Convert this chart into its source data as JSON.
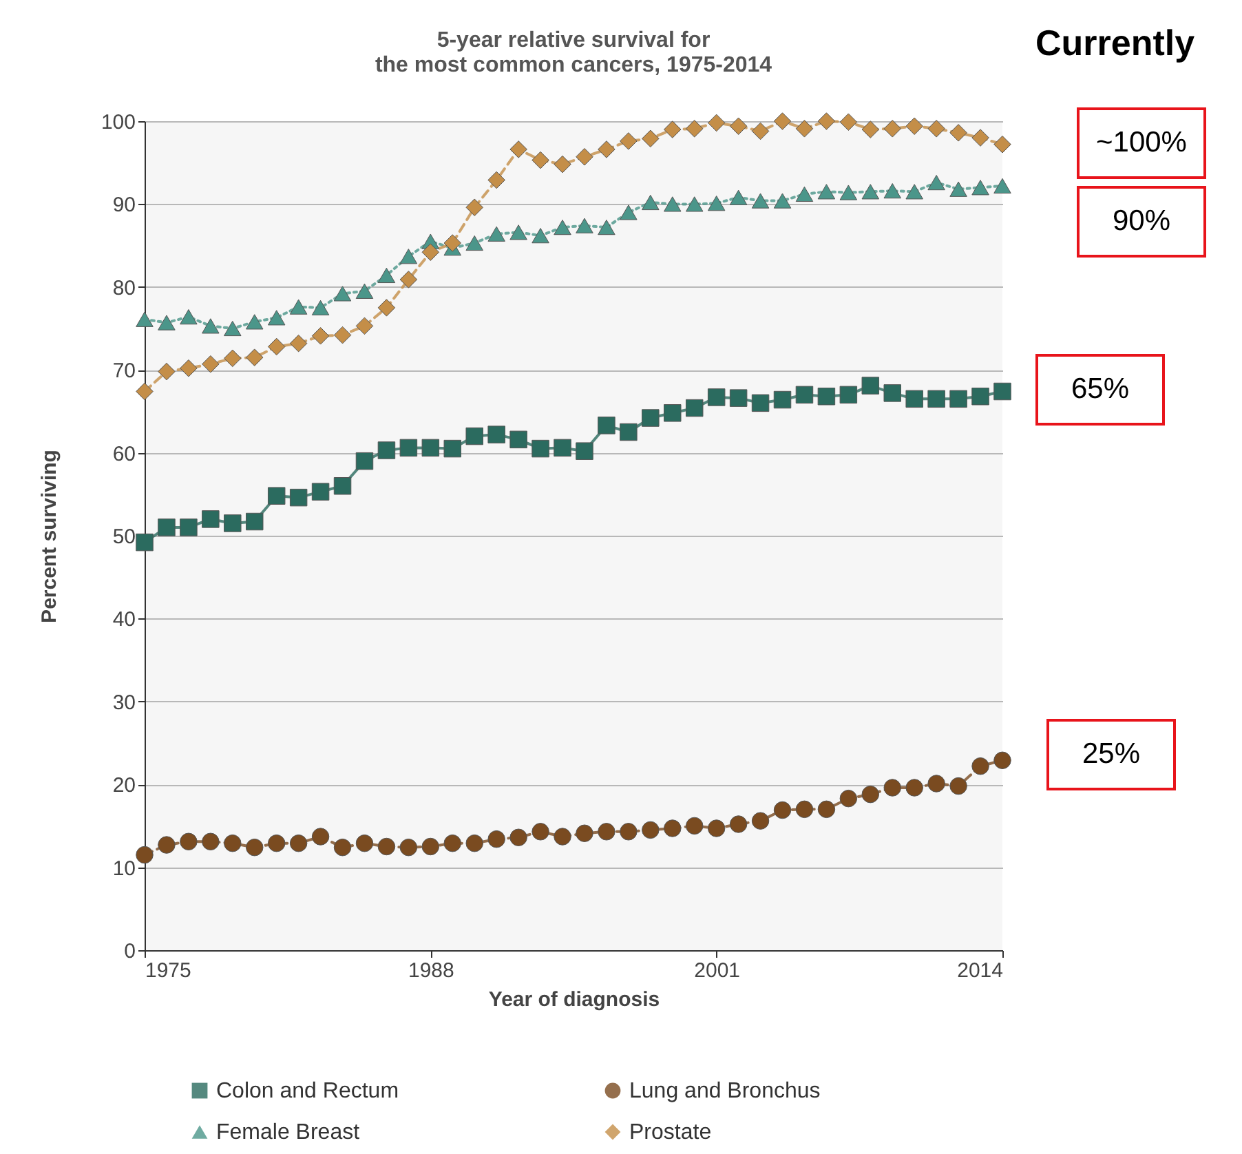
{
  "chart_data": {
    "type": "line",
    "title": "5-year relative survival for the most common cancers, 1975-2014",
    "xlabel": "Year of diagnosis",
    "ylabel": "Percent surviving",
    "x": [
      1975,
      1976,
      1977,
      1978,
      1979,
      1980,
      1981,
      1982,
      1983,
      1984,
      1985,
      1986,
      1987,
      1988,
      1989,
      1990,
      1991,
      1992,
      1993,
      1994,
      1995,
      1996,
      1997,
      1998,
      1999,
      2000,
      2001,
      2002,
      2003,
      2004,
      2005,
      2006,
      2007,
      2008,
      2009,
      2010,
      2011,
      2012,
      2013,
      2014
    ],
    "xlim": [
      1975,
      2014
    ],
    "xticks": [
      1975,
      1988,
      2001,
      2014
    ],
    "ylim": [
      0,
      100
    ],
    "yticks": [
      0,
      10,
      20,
      30,
      40,
      50,
      60,
      70,
      80,
      90,
      100
    ],
    "grid": "y",
    "legend": "bottom",
    "series": [
      {
        "name": "Colon and Rectum",
        "color": "#2b6b5f",
        "marker": "square",
        "line_style": "solid",
        "values": [
          49.2,
          51,
          51,
          52,
          51.5,
          51.7,
          54.8,
          54.6,
          55.3,
          56,
          59,
          60.3,
          60.6,
          60.6,
          60.5,
          62,
          62.2,
          61.6,
          60.5,
          60.6,
          60.2,
          63.3,
          62.5,
          64.2,
          64.8,
          65.4,
          66.7,
          66.6,
          66,
          66.4,
          67,
          66.8,
          67,
          68.1,
          67.2,
          66.5,
          66.5,
          66.5,
          66.8,
          67.4
        ]
      },
      {
        "name": "Lung and Bronchus",
        "color": "#7a4b20",
        "marker": "circle",
        "line_style": "dashed",
        "values": [
          11.5,
          12.7,
          13.1,
          13.1,
          12.9,
          12.4,
          12.9,
          12.9,
          13.7,
          12.4,
          12.9,
          12.5,
          12.4,
          12.5,
          12.9,
          12.9,
          13.4,
          13.6,
          14.3,
          13.7,
          14.1,
          14.3,
          14.3,
          14.5,
          14.7,
          15,
          14.7,
          15.2,
          15.6,
          16.9,
          17,
          17,
          18.3,
          18.8,
          19.6,
          19.6,
          20.1,
          19.8,
          22.2,
          22.9
        ]
      },
      {
        "name": "Female Breast",
        "color": "#4b968a",
        "marker": "triangle",
        "line_style": "dotted",
        "values": [
          76.1,
          75.7,
          76.4,
          75.3,
          75,
          75.8,
          76.3,
          77.6,
          77.5,
          79.2,
          79.5,
          81.4,
          83.7,
          85.5,
          84.7,
          85.3,
          86.4,
          86.6,
          86.2,
          87.2,
          87.4,
          87.2,
          89,
          90.2,
          90,
          90,
          90.1,
          90.8,
          90.4,
          90.4,
          91.2,
          91.5,
          91.4,
          91.5,
          91.6,
          91.5,
          92.6,
          91.8,
          92,
          92.2
        ]
      },
      {
        "name": "Prostate",
        "color": "#c48e48",
        "marker": "diamond",
        "line_style": "dashed",
        "values": [
          67.4,
          69.8,
          70.2,
          70.7,
          71.4,
          71.5,
          72.8,
          73.2,
          74.1,
          74.2,
          75.3,
          77.5,
          80.9,
          84.2,
          85.3,
          89.6,
          92.9,
          96.6,
          95.3,
          94.8,
          95.7,
          96.6,
          97.6,
          97.9,
          99,
          99.1,
          99.8,
          99.4,
          98.8,
          100,
          99.1,
          100,
          99.9,
          99,
          99.1,
          99.4,
          99.1,
          98.6,
          98,
          97.2
        ]
      }
    ],
    "annotations": [
      "Currently",
      "~100%",
      "90%",
      "65%",
      "25%"
    ]
  }
}
